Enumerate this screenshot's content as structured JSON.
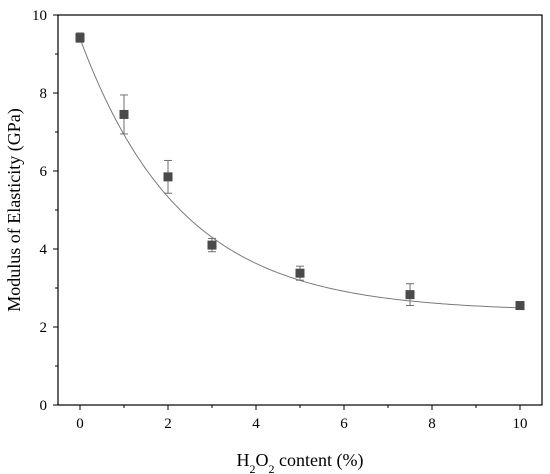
{
  "chart_data": {
    "type": "scatter",
    "xlabel": {
      "prefix": "H",
      "sub1": "2",
      "mid": "O",
      "sub2": "2",
      "suffix": " content (%)"
    },
    "ylabel": "Modulus of Elasticity (GPa)",
    "xlim": [
      -0.5,
      10.5
    ],
    "ylim": [
      0,
      10
    ],
    "xticks": [
      0,
      2,
      4,
      6,
      8,
      10
    ],
    "yticks": [
      0,
      2,
      4,
      6,
      8,
      10
    ],
    "grid": false,
    "series": [
      {
        "x": [
          0,
          1,
          2,
          3,
          5,
          7.5,
          10
        ],
        "y": [
          9.42,
          7.45,
          5.85,
          4.1,
          3.38,
          2.83,
          2.55
        ],
        "err": [
          0.12,
          0.5,
          0.42,
          0.17,
          0.18,
          0.28,
          0.05
        ]
      }
    ],
    "fit": {
      "type": "exponential",
      "y0": 2.4,
      "A": 7.0,
      "t": 2.3
    },
    "marker_color": "#4a4a4a",
    "fit_color": "#7a7a7a"
  }
}
